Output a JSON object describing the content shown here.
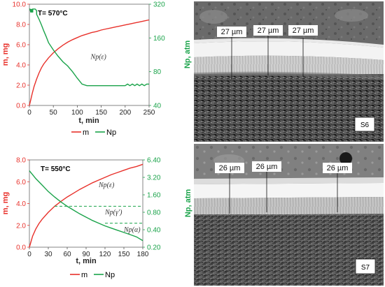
{
  "chart_data": [
    {
      "type": "line",
      "panel": "top-left",
      "annotation_temp": "T= 570°C",
      "xlabel": "t, min",
      "ylabel_left": "m, mg",
      "ylabel_right": "Np, atm",
      "xlim": [
        0,
        250
      ],
      "xticks": [
        0,
        50,
        100,
        150,
        200,
        250
      ],
      "ylim_left": [
        0,
        10
      ],
      "yticks_left": [
        "0.0",
        "2.0",
        "4.0",
        "6.0",
        "8.0",
        "10.0"
      ],
      "ylim_right": [
        40,
        320
      ],
      "yticks_right": [
        "40",
        "80",
        "160",
        "320"
      ],
      "ann_labels": [
        {
          "text": "Np(ε)",
          "x": 128,
          "y": 4.6
        }
      ],
      "series": [
        {
          "name": "m",
          "axis": "left",
          "color": "#e8312b",
          "x": [
            0,
            3,
            6,
            10,
            15,
            20,
            25,
            30,
            40,
            50,
            60,
            70,
            80,
            90,
            100,
            110,
            120,
            130,
            140,
            150,
            160,
            170,
            180,
            190,
            200,
            210,
            220,
            230,
            240,
            250
          ],
          "y": [
            0,
            0.6,
            1.2,
            1.9,
            2.6,
            3.2,
            3.7,
            4.1,
            4.7,
            5.2,
            5.6,
            5.95,
            6.25,
            6.5,
            6.7,
            6.9,
            7.05,
            7.2,
            7.3,
            7.45,
            7.55,
            7.65,
            7.75,
            7.85,
            7.95,
            8.05,
            8.15,
            8.25,
            8.35,
            8.45
          ]
        },
        {
          "name": "Np",
          "axis": "right",
          "color": "#1aa34a",
          "x": [
            0,
            1,
            3,
            3,
            5,
            5,
            7,
            7,
            10,
            12,
            15,
            15,
            20,
            25,
            30,
            35,
            40,
            50,
            60,
            70,
            80,
            90,
            100,
            110,
            120,
            130,
            140,
            150,
            160,
            170,
            180,
            190,
            200,
            205,
            210,
            215,
            220,
            225,
            230,
            235,
            240,
            245,
            250
          ],
          "y": [
            290,
            290,
            270,
            290,
            270,
            290,
            270,
            290,
            290,
            290,
            280,
            260,
            235,
            210,
            185,
            165,
            145,
            125,
            110,
            98,
            90,
            80,
            70,
            62,
            60,
            60,
            60,
            60,
            60,
            60,
            60,
            60,
            60,
            62,
            60,
            62,
            60,
            62,
            60,
            62,
            60,
            62,
            62
          ]
        }
      ],
      "legend": [
        {
          "name": "m",
          "color": "#e8312b"
        },
        {
          "name": "Np",
          "color": "#1aa34a"
        }
      ],
      "legend_position": "bottom"
    },
    {
      "type": "line",
      "panel": "bottom-left",
      "annotation_temp": "T= 550°C",
      "xlabel": "t, min",
      "ylabel_left": "m, mg",
      "ylabel_right": "Np, atm",
      "xlim": [
        0,
        180
      ],
      "xticks": [
        0,
        30,
        60,
        90,
        120,
        150,
        180
      ],
      "ylim_left": [
        0,
        8
      ],
      "yticks_left": [
        "0.0",
        "2.0",
        "4.0",
        "6.0",
        "8.0"
      ],
      "yticks_right": [
        "0.20",
        "0.40",
        "0.80",
        "1.60",
        "3.20",
        "6.40"
      ],
      "ann_labels": [
        {
          "text": "Np(ε)",
          "x": 110,
          "y": 5.5
        },
        {
          "text": "Np(γ′)",
          "x": 120,
          "y": 3.0
        },
        {
          "text": "Np(α)",
          "x": 150,
          "y": 1.4
        }
      ],
      "series": [
        {
          "name": "m",
          "axis": "left",
          "color": "#e8312b",
          "x": [
            0,
            5,
            10,
            15,
            20,
            30,
            40,
            50,
            60,
            70,
            80,
            90,
            100,
            110,
            120,
            130,
            140,
            150,
            160,
            170,
            180
          ],
          "y": [
            0,
            1.0,
            1.65,
            2.15,
            2.55,
            3.2,
            3.75,
            4.2,
            4.6,
            4.95,
            5.3,
            5.6,
            5.9,
            6.15,
            6.4,
            6.65,
            6.85,
            7.05,
            7.25,
            7.4,
            7.6
          ]
        },
        {
          "name": "Np",
          "axis": "right",
          "color": "#1aa34a",
          "x": [
            0,
            10,
            20,
            30,
            40,
            50,
            60,
            70,
            80,
            90,
            100,
            110,
            120,
            130,
            140,
            150,
            160,
            170,
            180
          ],
          "y": [
            7.0,
            6.3,
            5.7,
            5.1,
            4.6,
            4.15,
            3.75,
            3.4,
            3.05,
            2.75,
            2.45,
            2.2,
            1.95,
            1.75,
            1.55,
            1.35,
            1.15,
            0.95,
            0.6
          ]
        },
        {
          "name": "Np(ε) threshold",
          "axis": "left",
          "color": "#1aa34a",
          "style": "dashed",
          "x": [
            40,
            180
          ],
          "y": [
            3.75,
            3.75
          ]
        },
        {
          "name": "Np(γ′) threshold",
          "axis": "left",
          "color": "#1aa34a",
          "style": "dashed",
          "x": [
            120,
            180
          ],
          "y": [
            2.2,
            2.2
          ]
        }
      ],
      "legend": [
        {
          "name": "m",
          "color": "#e8312b"
        },
        {
          "name": "Np",
          "color": "#1aa34a"
        }
      ],
      "legend_position": "bottom"
    }
  ],
  "micrographs": [
    {
      "sample": "S6",
      "measure_label": "27 µm",
      "measurements": [
        "27 µm",
        "27 µm",
        "27 µm"
      ]
    },
    {
      "sample": "S7",
      "measure_label": "26 µm",
      "measurements": [
        "26 µm",
        "26 µm",
        "26 µm"
      ]
    }
  ]
}
